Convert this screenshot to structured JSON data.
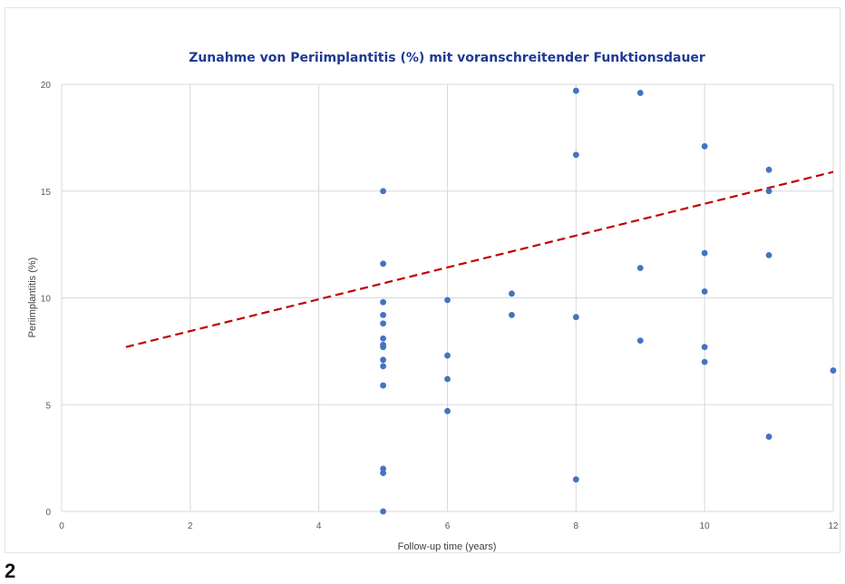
{
  "figure_label": "2",
  "chart_data": {
    "type": "scatter",
    "title": "Zunahme von Periimplantitis (%) mit voranschreitender Funktionsdauer",
    "xlabel": "Follow-up time (years)",
    "ylabel": "Periimplantitis (%)",
    "xlim": [
      0,
      12
    ],
    "ylim": [
      0,
      20
    ],
    "x_ticks": [
      0,
      2,
      4,
      6,
      8,
      10,
      12
    ],
    "y_ticks": [
      0,
      5,
      10,
      15,
      20
    ],
    "grid": true,
    "marker_color": "#4472c4",
    "trendline": {
      "style": "dashed",
      "color": "#c00000",
      "x": [
        1,
        12
      ],
      "y": [
        7.7,
        15.9
      ]
    },
    "points": [
      {
        "x": 5,
        "y": 15.0
      },
      {
        "x": 5,
        "y": 11.6
      },
      {
        "x": 5,
        "y": 9.8
      },
      {
        "x": 5,
        "y": 9.2
      },
      {
        "x": 5,
        "y": 8.8
      },
      {
        "x": 5,
        "y": 8.1
      },
      {
        "x": 5,
        "y": 7.8
      },
      {
        "x": 5,
        "y": 7.7
      },
      {
        "x": 5,
        "y": 7.1
      },
      {
        "x": 5,
        "y": 6.8
      },
      {
        "x": 5,
        "y": 5.9
      },
      {
        "x": 5,
        "y": 2.0
      },
      {
        "x": 5,
        "y": 1.8
      },
      {
        "x": 5,
        "y": 0.0
      },
      {
        "x": 6,
        "y": 9.9
      },
      {
        "x": 6,
        "y": 7.3
      },
      {
        "x": 6,
        "y": 6.2
      },
      {
        "x": 6,
        "y": 4.7
      },
      {
        "x": 7,
        "y": 10.2
      },
      {
        "x": 7,
        "y": 9.2
      },
      {
        "x": 8,
        "y": 19.7
      },
      {
        "x": 8,
        "y": 16.7
      },
      {
        "x": 8,
        "y": 9.1
      },
      {
        "x": 8,
        "y": 1.5
      },
      {
        "x": 9,
        "y": 19.6
      },
      {
        "x": 9,
        "y": 11.4
      },
      {
        "x": 9,
        "y": 8.0
      },
      {
        "x": 10,
        "y": 17.1
      },
      {
        "x": 10,
        "y": 12.1
      },
      {
        "x": 10,
        "y": 10.3
      },
      {
        "x": 10,
        "y": 7.7
      },
      {
        "x": 10,
        "y": 7.0
      },
      {
        "x": 11,
        "y": 16.0
      },
      {
        "x": 11,
        "y": 15.0
      },
      {
        "x": 11,
        "y": 12.0
      },
      {
        "x": 11,
        "y": 3.5
      },
      {
        "x": 12,
        "y": 6.6
      }
    ]
  }
}
